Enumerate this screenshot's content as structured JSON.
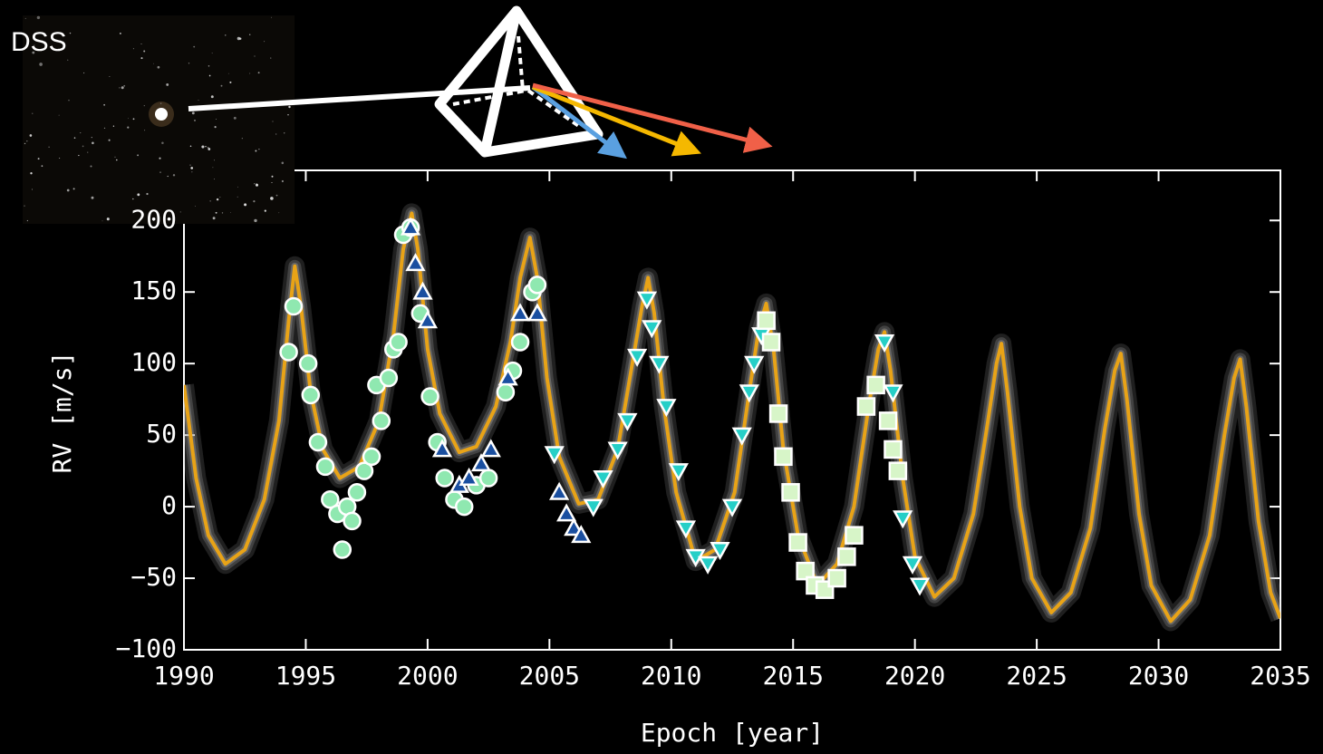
{
  "image_label": "DSS",
  "chart_data": {
    "type": "line",
    "xlabel": "Epoch [year]",
    "ylabel": "RV [m/s]",
    "xlim": [
      1990,
      2035
    ],
    "ylim": [
      -100,
      235
    ],
    "xticks": [
      1990,
      1995,
      2000,
      2005,
      2010,
      2015,
      2020,
      2025,
      2030,
      2035
    ],
    "yticks": [
      {
        "value": -100,
        "label": "−100"
      },
      {
        "value": -50,
        "label": "−50"
      },
      0,
      50,
      100,
      150,
      200
    ],
    "model": {
      "color": "#e8a317",
      "x": [
        1990.0,
        1990.5,
        1991.0,
        1991.7,
        1992.5,
        1993.3,
        1993.9,
        1994.3,
        1994.55,
        1994.8,
        1995.2,
        1995.7,
        1996.4,
        1997.2,
        1998.0,
        1998.6,
        1999.0,
        1999.35,
        1999.6,
        2000.0,
        2000.5,
        2001.3,
        2002.0,
        2002.8,
        2003.4,
        2003.8,
        2004.2,
        2004.5,
        2004.9,
        2005.4,
        2006.2,
        2007.0,
        2007.8,
        2008.4,
        2008.8,
        2009.05,
        2009.3,
        2009.7,
        2010.2,
        2011.0,
        2011.8,
        2012.6,
        2013.2,
        2013.6,
        2013.9,
        2014.2,
        2014.6,
        2015.2,
        2016.0,
        2016.8,
        2017.5,
        2018.1,
        2018.5,
        2018.75,
        2019.0,
        2019.5,
        2020.0,
        2020.8,
        2021.6,
        2022.4,
        2023.0,
        2023.35,
        2023.55,
        2023.8,
        2024.3,
        2024.8,
        2025.6,
        2026.4,
        2027.2,
        2027.8,
        2028.2,
        2028.45,
        2028.7,
        2029.2,
        2029.7,
        2030.5,
        2031.3,
        2032.1,
        2032.7,
        2033.1,
        2033.35,
        2033.6,
        2034.1,
        2034.6,
        2035.0
      ],
      "values": [
        85,
        20,
        -20,
        -40,
        -30,
        5,
        60,
        130,
        168,
        140,
        80,
        40,
        20,
        28,
        60,
        120,
        180,
        205,
        180,
        110,
        65,
        38,
        42,
        70,
        115,
        160,
        188,
        160,
        90,
        35,
        2,
        5,
        40,
        100,
        140,
        160,
        135,
        70,
        10,
        -38,
        -30,
        10,
        80,
        125,
        142,
        110,
        40,
        -20,
        -55,
        -40,
        0,
        70,
        110,
        122,
        95,
        20,
        -35,
        -63,
        -50,
        -5,
        60,
        100,
        114,
        80,
        0,
        -50,
        -74,
        -60,
        -15,
        55,
        95,
        107,
        75,
        -5,
        -55,
        -80,
        -65,
        -20,
        50,
        90,
        103,
        70,
        -10,
        -60,
        -78
      ]
    },
    "series": [
      {
        "color": "#8fe8b0",
        "marker": "circle",
        "x": [
          1994.3,
          1994.5,
          1995.1,
          1995.2,
          1995.5,
          1995.8,
          1996.0,
          1996.3,
          1996.5,
          1996.7,
          1996.9,
          1997.1,
          1997.4,
          1997.7,
          1997.9,
          1998.1,
          1998.4,
          1998.6,
          1998.8,
          1999.0,
          1999.3,
          1999.7,
          2000.1,
          2000.4,
          2000.7,
          2001.1,
          2001.5,
          2002.0,
          2002.5,
          2003.2,
          2003.5,
          2003.8,
          2004.3,
          2004.5
        ],
        "values": [
          108,
          140,
          100,
          78,
          45,
          28,
          5,
          -5,
          -30,
          0,
          -10,
          10,
          25,
          35,
          85,
          60,
          90,
          110,
          115,
          190,
          195,
          135,
          77,
          45,
          20,
          5,
          0,
          15,
          20,
          80,
          95,
          115,
          150,
          155
        ]
      },
      {
        "color": "#1a4fa0",
        "marker": "triangle-up",
        "x": [
          1999.3,
          1999.5,
          1999.8,
          2000.0,
          2000.6,
          2001.3,
          2001.7,
          2002.2,
          2002.6,
          2003.3,
          2003.8,
          2004.5,
          2005.4,
          2005.7,
          2006.0,
          2006.3
        ],
        "values": [
          195,
          170,
          150,
          130,
          40,
          15,
          20,
          30,
          40,
          90,
          135,
          135,
          10,
          -5,
          -15,
          -20
        ]
      },
      {
        "color": "#26cfc7",
        "marker": "triangle-down",
        "x": [
          2005.2,
          2006.8,
          2007.2,
          2007.8,
          2008.2,
          2008.6,
          2009.0,
          2009.2,
          2009.5,
          2009.8,
          2010.3,
          2010.6,
          2011.0,
          2011.5,
          2012.0,
          2012.5,
          2012.9,
          2013.2,
          2013.4,
          2013.7,
          2018.75,
          2019.1,
          2019.5,
          2019.9,
          2020.2
        ],
        "values": [
          37,
          0,
          20,
          40,
          60,
          105,
          145,
          125,
          100,
          70,
          25,
          -15,
          -35,
          -40,
          -30,
          0,
          50,
          80,
          100,
          120,
          115,
          80,
          -8,
          -40,
          -55
        ]
      },
      {
        "color": "#d7f5c8",
        "marker": "square",
        "x": [
          2013.9,
          2014.1,
          2014.4,
          2014.6,
          2014.9,
          2015.2,
          2015.5,
          2015.9,
          2016.3,
          2016.8,
          2017.2,
          2017.5,
          2018.0,
          2018.4,
          2018.9,
          2019.1,
          2019.3
        ],
        "values": [
          130,
          115,
          65,
          35,
          10,
          -25,
          -45,
          -55,
          -58,
          -50,
          -35,
          -20,
          70,
          85,
          60,
          40,
          25
        ]
      }
    ]
  }
}
